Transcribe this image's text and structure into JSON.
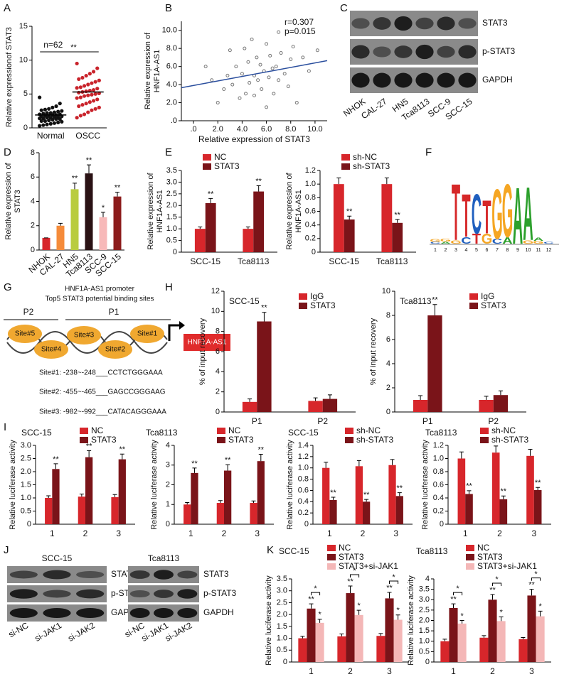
{
  "panel_labels": [
    "A",
    "B",
    "C",
    "D",
    "E",
    "F",
    "G",
    "H",
    "I",
    "J",
    "K"
  ],
  "chart_data": [
    {
      "type": "strip",
      "ylabel": "Relative expressionof STAT3",
      "categories": [
        "Normal",
        "OSCC"
      ],
      "colors": [
        "#111111",
        "#c9232b"
      ],
      "values": [
        [
          4.5,
          3.6,
          3.2,
          3.0,
          2.8,
          2.7,
          2.6,
          2.5,
          2.4,
          2.3,
          2.2,
          2.2,
          2.1,
          2.0,
          2.0,
          1.9,
          1.9,
          1.8,
          1.8,
          1.7,
          1.7,
          1.6,
          1.6,
          1.5,
          1.5,
          1.4,
          1.4,
          1.3,
          1.3,
          1.2,
          1.1,
          1.0,
          1.0,
          0.9,
          0.8,
          0.7,
          0.6,
          0.5,
          0.4,
          0.3
        ],
        [
          9.5,
          8.8,
          8.3,
          8.0,
          7.7,
          7.4,
          7.2,
          7.0,
          6.8,
          6.6,
          6.4,
          6.2,
          6.0,
          5.9,
          5.8,
          5.6,
          5.5,
          5.4,
          5.3,
          5.2,
          5.1,
          5.0,
          4.9,
          4.8,
          4.7,
          4.5,
          4.4,
          4.2,
          4.0,
          3.8,
          3.6,
          3.4,
          3.2,
          3.0,
          2.8,
          2.6,
          2.3,
          2.0,
          1.8,
          1.5
        ]
      ],
      "means": [
        1.9,
        5.3
      ],
      "annotations": [
        "n=62",
        "**"
      ],
      "ylim": [
        0,
        15
      ],
      "yticks": [
        0,
        5,
        10,
        15
      ]
    },
    {
      "type": "scatter",
      "xlabel": "Relative expression of STAT3",
      "ylabel": [
        "Relative expression of",
        "HNF1A-AS1"
      ],
      "annotations": [
        "r=0.307",
        "p=0.015"
      ],
      "color": "#777777",
      "line_color": "#2b4f9e",
      "x": [
        1.0,
        1.5,
        2.0,
        2.5,
        2.8,
        3.0,
        3.2,
        3.5,
        3.8,
        4.0,
        4.2,
        4.3,
        4.5,
        4.6,
        4.8,
        5.0,
        5.0,
        5.2,
        5.3,
        5.5,
        5.6,
        5.8,
        6.0,
        6.0,
        6.2,
        6.3,
        6.5,
        6.6,
        6.8,
        7.0,
        7.0,
        7.2,
        7.5,
        7.8,
        8.0,
        8.2,
        8.5,
        9.0,
        9.5,
        10.2
      ],
      "y": [
        6.0,
        4.5,
        2.0,
        3.5,
        5.0,
        7.8,
        4.0,
        6.0,
        2.5,
        5.2,
        8.0,
        3.0,
        6.5,
        4.2,
        9.0,
        5.0,
        2.8,
        7.0,
        4.5,
        6.2,
        3.5,
        5.5,
        8.5,
        1.5,
        4.8,
        7.2,
        5.8,
        3.0,
        6.0,
        9.8,
        4.5,
        7.5,
        5.2,
        3.8,
        6.8,
        8.2,
        2.0,
        7.0,
        5.5,
        7.8
      ],
      "fit_line": {
        "x": [
          -1,
          11
        ],
        "y": [
          3.65,
          6.65
        ]
      },
      "xlim": [
        -1,
        11
      ],
      "xticks": [
        {
          "value": 0,
          "label": ".0"
        },
        {
          "value": 2,
          "label": "2.0"
        },
        {
          "value": 4,
          "label": "4.0"
        },
        {
          "value": 6,
          "label": "6.0"
        },
        {
          "value": 8,
          "label": "8.0"
        },
        {
          "value": 10,
          "label": "10.0"
        }
      ],
      "ylim": [
        0,
        11
      ],
      "yticks": [
        {
          "value": 0,
          "label": ".0"
        },
        {
          "value": 2,
          "label": "2.0"
        },
        {
          "value": 4,
          "label": "4.0"
        },
        {
          "value": 6,
          "label": "6.0"
        },
        {
          "value": 8,
          "label": "8.0"
        },
        {
          "value": 10,
          "label": "10.0"
        }
      ]
    },
    {
      "type": "bar",
      "ylabel": [
        "Relative expression of",
        "STAT3"
      ],
      "categories": [
        "NHOK",
        "CAL-27",
        "HN5",
        "Tca8113",
        "SCC-9",
        "SCC-15"
      ],
      "series": [
        {
          "colors": [
            "#d7262b",
            "#f58b3a",
            "#b9cc3f",
            "#2a1214",
            "#f7b9b9",
            "#8c1c1c"
          ],
          "values": [
            1,
            2,
            5,
            6.3,
            2.7,
            4.4
          ],
          "errors": [
            0,
            0.2,
            0.5,
            0.7,
            0.4,
            0.35
          ],
          "stars": [
            null,
            null,
            "**",
            "**",
            "*",
            "**"
          ]
        }
      ],
      "ylim": [
        0,
        8
      ],
      "yticks": [
        0,
        2,
        4,
        6,
        8
      ]
    },
    {
      "type": "bar",
      "ylabel": [
        "Relative expression of",
        "HNF1A-AS1"
      ],
      "categories": [
        "SCC-15",
        "Tca8113"
      ],
      "legend": "top",
      "series": [
        {
          "name": "NC",
          "color": "#d7262b",
          "values": [
            1,
            1
          ],
          "errors": [
            0.08,
            0.08
          ]
        },
        {
          "name": "STAT3",
          "color": "#7a1419",
          "values": [
            2.1,
            2.6
          ],
          "errors": [
            0.2,
            0.25
          ],
          "stars": [
            "**",
            "**"
          ]
        }
      ],
      "ylim": [
        0,
        3.5
      ],
      "yticks": [
        0,
        0.5,
        {
          "value": 1,
          "label": "1.0"
        },
        1.5,
        {
          "value": 2,
          "label": "2.0"
        },
        2.5,
        {
          "value": 3,
          "label": "3.0"
        },
        3.5
      ]
    },
    {
      "type": "bar",
      "ylabel": [
        "Relative expression of",
        "HNF1A-AS1"
      ],
      "categories": [
        "SCC-15",
        "Tca8113"
      ],
      "legend": "top",
      "series": [
        {
          "name": "sh-NC",
          "color": "#d7262b",
          "values": [
            1,
            1
          ],
          "errors": [
            0.09,
            0.09
          ]
        },
        {
          "name": "sh-STAT3",
          "color": "#7a1419",
          "values": [
            0.48,
            0.43
          ],
          "errors": [
            0.05,
            0.05
          ],
          "stars": [
            "**",
            "**"
          ]
        }
      ],
      "ylim": [
        0,
        1.2
      ],
      "yticks": [
        0,
        0.2,
        0.4,
        0.6,
        0.8,
        {
          "value": 1,
          "label": "1.0"
        },
        1.2
      ]
    },
    {
      "type": "bar",
      "title": "SCC-15",
      "ylabel": "% of input recovery",
      "categories": [
        "P1",
        "P2"
      ],
      "legend": "top",
      "series": [
        {
          "name": "IgG",
          "color": "#d7262b",
          "values": [
            1,
            1.1
          ],
          "errors": [
            0.3,
            0.3
          ]
        },
        {
          "name": "STAT3",
          "color": "#7a1419",
          "values": [
            9,
            1.3
          ],
          "errors": [
            0.9,
            0.4
          ],
          "stars": [
            "**",
            null
          ]
        }
      ],
      "ylim": [
        0,
        12
      ],
      "yticks": [
        0,
        2,
        4,
        6,
        8,
        10,
        12
      ]
    },
    {
      "type": "bar",
      "title": "Tca8113",
      "ylabel": "% of input recovery",
      "categories": [
        "P1",
        "P2"
      ],
      "legend": "top",
      "series": [
        {
          "name": "IgG",
          "color": "#d7262b",
          "values": [
            1,
            1
          ],
          "errors": [
            0.35,
            0.3
          ]
        },
        {
          "name": "STAT3",
          "color": "#7a1419",
          "values": [
            8,
            1.4
          ],
          "errors": [
            0.9,
            0.35
          ],
          "stars": [
            "**",
            null
          ]
        }
      ],
      "ylim": [
        0,
        10
      ],
      "yticks": [
        0,
        2,
        4,
        6,
        8,
        10
      ]
    },
    {
      "type": "bar",
      "title": "SCC-15",
      "ylabel": "Relative luciferase activity",
      "categories": [
        "1",
        "2",
        "3"
      ],
      "legend": "top",
      "series": [
        {
          "name": "NC",
          "color": "#d7262b",
          "values": [
            1,
            1.05,
            1.03
          ],
          "errors": [
            0.08,
            0.1,
            0.1
          ]
        },
        {
          "name": "STAT3",
          "color": "#7a1419",
          "values": [
            2.1,
            2.55,
            2.47
          ],
          "errors": [
            0.2,
            0.25,
            0.2
          ],
          "stars": [
            "**",
            "**",
            "**"
          ]
        }
      ],
      "ylim": [
        0,
        3
      ],
      "yticks": [
        0,
        0.5,
        {
          "value": 1,
          "label": "1.0"
        },
        1.5,
        {
          "value": 2,
          "label": "2.0"
        },
        2.5,
        {
          "value": 3,
          "label": "3.0"
        }
      ]
    },
    {
      "type": "bar",
      "title": "Tca8113",
      "ylabel": "Relative luciferase activity",
      "categories": [
        "1",
        "2",
        "3"
      ],
      "legend": "top",
      "series": [
        {
          "name": "NC",
          "color": "#d7262b",
          "values": [
            1,
            1.08,
            1.08
          ],
          "errors": [
            0.1,
            0.12,
            0.1
          ]
        },
        {
          "name": "STAT3",
          "color": "#7a1419",
          "values": [
            2.6,
            2.72,
            3.2
          ],
          "errors": [
            0.25,
            0.3,
            0.35
          ],
          "stars": [
            "**",
            "**",
            "**"
          ]
        }
      ],
      "ylim": [
        0,
        4
      ],
      "yticks": [
        0,
        1,
        2,
        3,
        4
      ]
    },
    {
      "type": "bar",
      "title": "SCC-15",
      "ylabel": "Relative luciferase activity",
      "categories": [
        "1",
        "2",
        "3"
      ],
      "legend": "top",
      "series": [
        {
          "name": "sh-NC",
          "color": "#d7262b",
          "values": [
            1,
            1.03,
            1.05
          ],
          "errors": [
            0.1,
            0.1,
            0.1
          ]
        },
        {
          "name": "sh-STAT3",
          "color": "#7a1419",
          "values": [
            0.43,
            0.4,
            0.5
          ],
          "errors": [
            0.05,
            0.04,
            0.06
          ],
          "stars": [
            "**",
            "**",
            "**"
          ]
        }
      ],
      "ylim": [
        0,
        1.4
      ],
      "yticks": [
        0,
        0.2,
        0.4,
        0.6,
        0.8,
        {
          "value": 1,
          "label": "1.0"
        },
        1.2,
        1.4
      ]
    },
    {
      "type": "bar",
      "title": "Tca8113",
      "ylabel": "Relative luciferase activity",
      "categories": [
        "1",
        "2",
        "3"
      ],
      "legend": "top",
      "series": [
        {
          "name": "sh-NC",
          "color": "#d7262b",
          "values": [
            1,
            1.09,
            1.04
          ],
          "errors": [
            0.1,
            0.1,
            0.1
          ]
        },
        {
          "name": "sh-STAT3",
          "color": "#7a1419",
          "values": [
            0.46,
            0.38,
            0.52
          ],
          "errors": [
            0.05,
            0.05,
            0.04
          ],
          "stars": [
            "**",
            "**",
            "**"
          ]
        }
      ],
      "ylim": [
        0,
        1.2
      ],
      "yticks": [
        0,
        0.2,
        0.4,
        0.6,
        0.8,
        {
          "value": 1,
          "label": "1.0"
        },
        1.2
      ]
    },
    {
      "type": "bar",
      "title": "SCC-15",
      "ylabel": "Relative luciferase activity",
      "categories": [
        "1",
        "2",
        "3"
      ],
      "legend": "top",
      "bracket_labels": [
        "*",
        "*",
        "*"
      ],
      "series": [
        {
          "name": "NC",
          "color": "#d7262b",
          "values": [
            1,
            1.08,
            1.1
          ],
          "errors": [
            0.08,
            0.1,
            0.1
          ]
        },
        {
          "name": "STAT3",
          "color": "#7a1419",
          "values": [
            2.25,
            2.9,
            2.68
          ],
          "errors": [
            0.2,
            0.3,
            0.25
          ],
          "stars": [
            "**",
            "**",
            "**"
          ]
        },
        {
          "name": "STAT3+si-JAK1",
          "color": "#f4b7b7",
          "values": [
            1.65,
            1.98,
            1.78
          ],
          "errors": [
            0.15,
            0.2,
            0.2
          ],
          "stars": [
            "*",
            "*",
            "*"
          ]
        }
      ],
      "ylim": [
        0,
        3.5
      ],
      "yticks": [
        0,
        0.5,
        {
          "value": 1,
          "label": "1.0"
        },
        1.5,
        {
          "value": 2,
          "label": "2.0"
        },
        2.5,
        {
          "value": 3,
          "label": "3.0"
        },
        3.5
      ]
    },
    {
      "type": "bar",
      "title": "Tca8113",
      "ylabel": "Relative luciferase activity",
      "categories": [
        "1",
        "2",
        "3"
      ],
      "legend": "top",
      "bracket_labels": [
        "*",
        "*",
        "*"
      ],
      "series": [
        {
          "name": "NC",
          "color": "#d7262b",
          "values": [
            1,
            1.17,
            1.1
          ],
          "errors": [
            0.1,
            0.1,
            0.08
          ]
        },
        {
          "name": "STAT3",
          "color": "#7a1419",
          "values": [
            2.6,
            3.0,
            3.2
          ],
          "errors": [
            0.2,
            0.25,
            0.3
          ],
          "stars": [
            "**",
            "**",
            "**"
          ]
        },
        {
          "name": "STAT3+si-JAK1",
          "color": "#f4b7b7",
          "values": [
            1.85,
            1.97,
            2.2
          ],
          "errors": [
            0.15,
            0.2,
            0.25
          ],
          "stars": [
            "*",
            "*",
            "*"
          ]
        }
      ],
      "ylim": [
        0,
        4
      ],
      "yticks": [
        0,
        0.5,
        {
          "value": 1,
          "label": "1.0"
        },
        1.5,
        {
          "value": 2,
          "label": "2.0"
        },
        2.5,
        {
          "value": 3,
          "label": "3.0"
        },
        3.5,
        4
      ]
    }
  ],
  "blots": [
    {
      "rows": [
        "STAT3",
        "p-STAT3",
        "GAPDH"
      ],
      "lanes": [
        "NHOK",
        "CAL-27",
        "HN5",
        "Tca8113",
        "SCC-9",
        "SCC-15"
      ]
    },
    {
      "title": "SCC-15",
      "rows": [
        "STAT3",
        "p-STAT3",
        "GAPDH"
      ],
      "lanes": [
        "si-NC",
        "si-JAK1",
        "si-JAK2"
      ]
    },
    {
      "title": "Tca8113",
      "rows": [
        "STAT3",
        "p-STAT3",
        "GAPDH"
      ],
      "lanes": [
        "si-NC",
        "si-JAK1",
        "si-JAK2"
      ]
    }
  ],
  "motif": {
    "positions": [
      1,
      2,
      3,
      4,
      5,
      6,
      7,
      8,
      9,
      10,
      11,
      12
    ],
    "letter_colors": {
      "A": "#2ca02c",
      "C": "#1f5fbf",
      "G": "#f5a623",
      "T": "#d62728"
    },
    "stacks": [
      [
        {
          "letter": "C",
          "height": 0.05
        },
        {
          "letter": "G",
          "height": 0.08
        }
      ],
      [
        {
          "letter": "A",
          "height": 0.06
        },
        {
          "letter": "G",
          "height": 0.08
        }
      ],
      [
        {
          "letter": "G",
          "height": 0.1
        },
        {
          "letter": "T",
          "height": 1.7
        }
      ],
      [
        {
          "letter": "C",
          "height": 0.2
        },
        {
          "letter": "T",
          "height": 1.3
        }
      ],
      [
        {
          "letter": "T",
          "height": 0.3
        },
        {
          "letter": "C",
          "height": 1.2
        }
      ],
      [
        {
          "letter": "G",
          "height": 0.3
        },
        {
          "letter": "T",
          "height": 1.0
        }
      ],
      [
        {
          "letter": "C",
          "height": 0.15
        },
        {
          "letter": "G",
          "height": 1.5
        }
      ],
      [
        {
          "letter": "A",
          "height": 0.2
        },
        {
          "letter": "G",
          "height": 1.6
        }
      ],
      [
        {
          "letter": "A",
          "height": 1.7
        }
      ],
      [
        {
          "letter": "G",
          "height": 0.1
        },
        {
          "letter": "A",
          "height": 1.6
        }
      ],
      [
        {
          "letter": "G",
          "height": 0.08
        },
        {
          "letter": "A",
          "height": 0.1
        }
      ],
      [
        {
          "letter": "C",
          "height": 0.05
        }
      ]
    ]
  },
  "diagram": {
    "title": "HNF1A-AS1 promoter",
    "subtitle": "Top5 STAT3 potential binding sites",
    "regions": [
      "P2",
      "P1"
    ],
    "sites": [
      "Site#5",
      "Site#4",
      "Site#3",
      "Site#2",
      "Site#1"
    ],
    "gene": "HNF1A-AS1",
    "sequences": [
      "Site#1: -238~-248___CCTCTGGGAAA",
      "Site#2: -455~-465___GAGCCGGGAAG",
      "Site#3: -982~-992___CATACAGGGAAA"
    ]
  }
}
